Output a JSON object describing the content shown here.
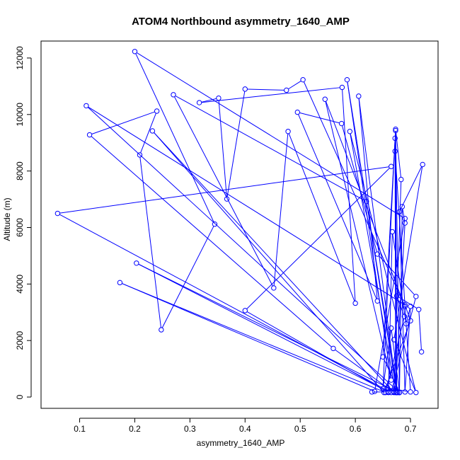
{
  "colors": {
    "series": "#0000ff",
    "axis": "#000000",
    "background": "#ffffff"
  },
  "chart_data": {
    "type": "line",
    "title": "ATOM4 Northbound asymmetry_1640_AMP",
    "xlabel": "asymmetry_1640_AMP",
    "ylabel": "Altitude (m)",
    "xlim": [
      0.03,
      0.75
    ],
    "ylim": [
      -400,
      12600
    ],
    "xticks": [
      0.1,
      0.2,
      0.3,
      0.4,
      0.5,
      0.6,
      0.7
    ],
    "xtick_labels": [
      "0.1",
      "0.2",
      "0.3",
      "0.4",
      "0.5",
      "0.6",
      "0.7"
    ],
    "yticks": [
      0,
      2000,
      4000,
      6000,
      8000,
      10000,
      12000
    ],
    "ytick_labels": [
      "0",
      "2000",
      "4000",
      "6000",
      "8000",
      "10000",
      "12000"
    ],
    "grid": false,
    "legend": "none",
    "marker": "open-circle",
    "series": [
      {
        "points": [
          [
            0.72,
            1600
          ],
          [
            0.715,
            3100
          ],
          [
            0.675,
            3580
          ],
          [
            0.689,
            2850
          ],
          [
            0.655,
            160
          ],
          [
            0.173,
            4050
          ],
          [
            0.635,
            200
          ],
          [
            0.69,
            6320
          ],
          [
            0.2,
            12230
          ],
          [
            0.345,
            6120
          ],
          [
            0.248,
            2380
          ],
          [
            0.209,
            8570
          ],
          [
            0.24,
            10120
          ],
          [
            0.118,
            9280
          ],
          [
            0.56,
            1720
          ],
          [
            0.67,
            160
          ],
          [
            0.232,
            9420
          ],
          [
            0.652,
            160
          ],
          [
            0.7,
            2700
          ],
          [
            0.69,
            3260
          ],
          [
            0.112,
            10310
          ],
          [
            0.68,
            160
          ],
          [
            0.685,
            6740
          ],
          [
            0.69,
            6160
          ],
          [
            0.673,
            300
          ],
          [
            0.68,
            160
          ],
          [
            0.65,
            1420
          ],
          [
            0.673,
            9480
          ],
          [
            0.683,
            7700
          ],
          [
            0.67,
            180
          ],
          [
            0.658,
            330
          ],
          [
            0.7,
            180
          ],
          [
            0.672,
            8700
          ],
          [
            0.673,
            160
          ],
          [
            0.59,
            9400
          ],
          [
            0.71,
            160
          ],
          [
            0.67,
            2030
          ],
          [
            0.722,
            8230
          ],
          [
            0.68,
            6560
          ],
          [
            0.69,
            180
          ],
          [
            0.7,
            3210
          ],
          [
            0.692,
            2590
          ],
          [
            0.667,
            5850
          ],
          [
            0.66,
            160
          ],
          [
            0.4,
            3060
          ],
          [
            0.665,
            8160
          ],
          [
            0.06,
            6500
          ],
          [
            0.665,
            160
          ],
          [
            0.71,
            3560
          ],
          [
            0.64,
            5060
          ],
          [
            0.575,
            9680
          ],
          [
            0.495,
            10080
          ],
          [
            0.64,
            3400
          ],
          [
            0.606,
            10650
          ],
          [
            0.675,
            160
          ],
          [
            0.672,
            9160
          ],
          [
            0.65,
            300
          ],
          [
            0.665,
            2440
          ],
          [
            0.68,
            160
          ],
          [
            0.673,
            9430
          ],
          [
            0.675,
            160
          ],
          [
            0.585,
            11230
          ],
          [
            0.665,
            600
          ],
          [
            0.545,
            10540
          ],
          [
            0.69,
            3200
          ],
          [
            0.505,
            11230
          ],
          [
            0.475,
            10860
          ],
          [
            0.4,
            10900
          ],
          [
            0.367,
            7010
          ],
          [
            0.352,
            10580
          ],
          [
            0.317,
            10420
          ],
          [
            0.576,
            10960
          ],
          [
            0.6,
            3320
          ],
          [
            0.478,
            9400
          ],
          [
            0.452,
            3860
          ],
          [
            0.27,
            10700
          ],
          [
            0.62,
            6920
          ],
          [
            0.677,
            160
          ],
          [
            0.203,
            4740
          ],
          [
            0.66,
            180
          ],
          [
            0.63,
            180
          ]
        ]
      }
    ]
  }
}
